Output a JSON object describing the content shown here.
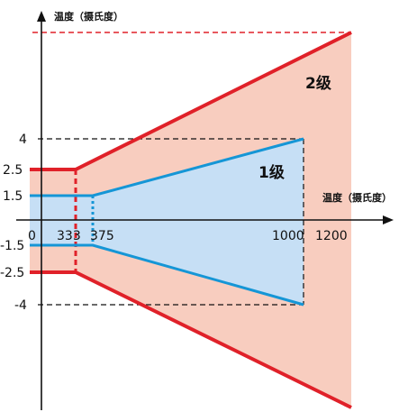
{
  "axes": {
    "y_title": "温度（摄氏度）",
    "x_title": "温度（摄氏度）"
  },
  "y_ticks": [
    "4",
    "2.5",
    "1.5",
    "-1.5",
    "-2.5",
    "-4"
  ],
  "x_ticks": [
    "0",
    "333",
    "375",
    "1000",
    "1200"
  ],
  "zones": {
    "level1": "1级",
    "level2": "2级"
  },
  "colors": {
    "level1_fill": "#c6dff5",
    "level2_fill": "#f8cdbf",
    "level1_line": "#1596d6",
    "level2_line": "#e02129",
    "axis": "#111111"
  }
}
